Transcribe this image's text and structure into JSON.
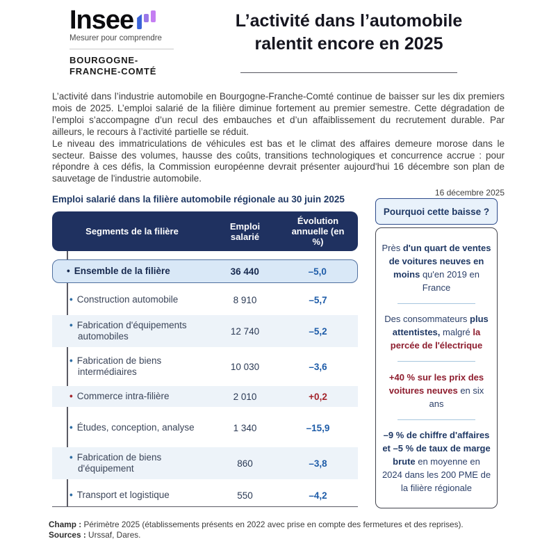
{
  "logo": {
    "brand": "Insee",
    "tagline": "Mesurer pour comprendre",
    "region_line1": "BOURGOGNE-",
    "region_line2": "FRANCHE-COMTÉ",
    "bar_colors": [
      "#3a63d8",
      "#9a78e8",
      "#c47ef2"
    ]
  },
  "header": {
    "title_line1": "L’activité dans l’automobile",
    "title_line2": "ralentit encore en 2025"
  },
  "intro": {
    "paragraph1": "L’activité dans l’industrie automobile en Bourgogne-Franche-Comté continue de baisser sur les dix premiers mois de 2025. L’emploi salarié de la filière diminue fortement au premier semestre. Cette dégradation de l’emploi s’accompagne d’un recul des embauches et d’un affaiblissement du recrutement durable. Par ailleurs, le recours à l’activité partielle se réduit.",
    "paragraph2": "Le niveau des immatriculations de véhicules est bas et le climat des affaires demeure morose dans le secteur. Baisse des volumes, hausse des coûts, transitions technologiques et concurrence accrue : pour répondre à ces défis, la Commission européenne devrait présenter aujourd'hui 16 décembre son plan de sauvetage de l'industrie automobile.",
    "date": "16 décembre 2025"
  },
  "table": {
    "title": "Emploi salarié dans la filière automobile régionale au 30 juin 2025",
    "bullet": "•",
    "columns": [
      "Segments de la filière",
      "Emploi salarié",
      "Évolution annuelle (en %)"
    ],
    "rows": [
      {
        "label": "Ensemble de la filière",
        "value": "36 440",
        "evolution": "–5,0",
        "trend": "down",
        "highlight": true
      },
      {
        "label": "Construction automobile",
        "value": "8 910",
        "evolution": "–5,7",
        "trend": "down"
      },
      {
        "label": "Fabrication d'équipements automobiles",
        "value": "12 740",
        "evolution": "–5,2",
        "trend": "down"
      },
      {
        "label": "Fabrication de biens intermédiaires",
        "value": "10 030",
        "evolution": "–3,6",
        "trend": "down"
      },
      {
        "label": "Commerce intra-filière",
        "value": "2 010",
        "evolution": "+0,2",
        "trend": "up"
      },
      {
        "label": "Études, conception, analyse",
        "value": "1 340",
        "evolution": "–15,9",
        "trend": "down"
      },
      {
        "label": "Fabrication de biens d'équipement",
        "value": "860",
        "evolution": "–3,8",
        "trend": "down"
      },
      {
        "label": "Transport et logistique",
        "value": "550",
        "evolution": "–4,2",
        "trend": "down"
      }
    ]
  },
  "sidebar": {
    "title": "Pourquoi cette baisse ?",
    "blocks": [
      {
        "segments": [
          {
            "text": "Près ",
            "style": "normal"
          },
          {
            "text": "d'un quart de ventes de voitures neuves en moins",
            "style": "bold"
          },
          {
            "text": " qu'en 2019 en France",
            "style": "normal"
          }
        ]
      },
      {
        "segments": [
          {
            "text": "Des consommateurs ",
            "style": "normal"
          },
          {
            "text": "plus attentistes,",
            "style": "bold"
          },
          {
            "text": " malgré ",
            "style": "normal"
          },
          {
            "text": "la percée de l'électrique",
            "style": "boldred"
          }
        ]
      },
      {
        "segments": [
          {
            "text": "+40 % sur les prix des voitures neuves",
            "style": "boldred"
          },
          {
            "text": " en six ans",
            "style": "normal"
          }
        ]
      },
      {
        "segments": [
          {
            "text": "–9 % de chiffre d'affaires et –5 % de taux de marge brute",
            "style": "bold"
          },
          {
            "text": " en moyenne en 2024 dans les 200 PME de la filière régionale",
            "style": "normal"
          }
        ]
      }
    ]
  },
  "footer": {
    "champ_label": "Champ :",
    "champ_text": " Périmètre 2025 (établissements présents en 2022 avec prise en compte des fermetures et des reprises).",
    "sources_label": "Sources :",
    "sources_text": " Urssaf, Dares."
  },
  "colors": {
    "header_navy": "#1f3160",
    "navy_text": "#1f3864",
    "highlight_bg": "#d9e8f7",
    "highlight_border": "#4f6f9f",
    "stripe_bg": "#edf3f9",
    "evolution_down_blue": "#1e5ca8",
    "evolution_up_red": "#a3242c",
    "sidebar_red": "#8e1d2e",
    "divider_blue": "#a6c6de"
  }
}
